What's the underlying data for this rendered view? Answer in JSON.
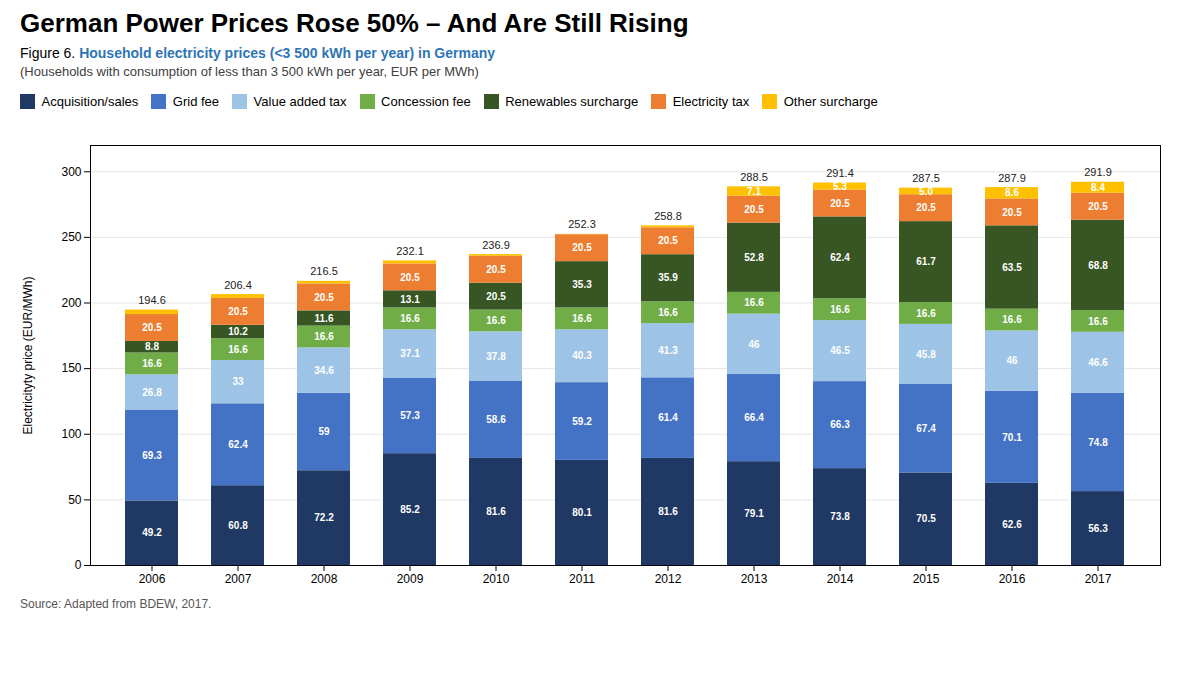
{
  "chart_data": {
    "type": "bar",
    "stacked": true,
    "title": "German Power Prices Rose 50% – And Are Still Rising",
    "subtitle": "(Households with consumption of less than 3 500 kWh per year, EUR per MWh)",
    "annotations": [
      {
        "text": "Figure 6."
      },
      {
        "text": "Household electricity prices (<3 500 kWh per year) in Germany",
        "color": "#2e75b6"
      },
      {
        "text": "Source: Adapted from BDEW, 2017."
      }
    ],
    "categories": [
      "2006",
      "2007",
      "2008",
      "2009",
      "2010",
      "2011",
      "2012",
      "2013",
      "2014",
      "2015",
      "2016",
      "2017"
    ],
    "series": [
      {
        "name": "Acquisition/sales",
        "color": "#1f3864",
        "values": [
          49.2,
          60.8,
          72.2,
          85.2,
          81.6,
          80.1,
          81.6,
          79.1,
          73.8,
          70.5,
          62.6,
          56.3
        ]
      },
      {
        "name": "Grid fee",
        "color": "#4472c4",
        "values": [
          69.3,
          62.4,
          59.0,
          57.3,
          58.6,
          59.2,
          61.4,
          66.4,
          66.3,
          67.4,
          70.1,
          74.8
        ]
      },
      {
        "name": "Value added tax",
        "color": "#9dc3e6",
        "values": [
          26.8,
          33.0,
          34.6,
          37.1,
          37.8,
          40.3,
          41.3,
          46.0,
          46.5,
          45.8,
          46.0,
          46.6
        ]
      },
      {
        "name": "Concession fee",
        "color": "#70ad47",
        "values": [
          16.6,
          16.6,
          16.6,
          16.6,
          16.6,
          16.6,
          16.6,
          16.6,
          16.6,
          16.6,
          16.6,
          16.6
        ]
      },
      {
        "name": "Renewables surcharge",
        "color": "#375623",
        "values": [
          8.8,
          10.2,
          11.6,
          13.1,
          20.5,
          35.3,
          35.9,
          52.8,
          62.4,
          61.7,
          63.5,
          68.8
        ]
      },
      {
        "name": "Electricity tax",
        "color": "#ed7d31",
        "values": [
          20.5,
          20.5,
          20.5,
          20.5,
          20.5,
          20.5,
          20.5,
          20.5,
          20.5,
          20.5,
          20.5,
          20.5
        ]
      },
      {
        "name": "Other surcharge",
        "color": "#ffc000",
        "values": [
          3.4,
          2.9,
          2.0,
          2.3,
          1.3,
          0.3,
          1.5,
          7.1,
          5.3,
          5.0,
          8.6,
          8.4
        ],
        "value_labels": [
          null,
          null,
          null,
          null,
          null,
          null,
          null,
          "7.1",
          "5.3",
          "5.0",
          "8.6",
          "8.4"
        ]
      }
    ],
    "totals": [
      194.6,
      206.4,
      216.5,
      232.1,
      236.9,
      252.3,
      258.8,
      288.5,
      291.4,
      287.5,
      287.9,
      291.9
    ],
    "data_labels": true,
    "ylabel": "Electricityty price (EUR/MWh)",
    "ylim": [
      0,
      320
    ],
    "yticks": [
      0,
      50,
      100,
      150,
      200,
      250,
      300
    ],
    "grid": true,
    "legend": "top"
  }
}
